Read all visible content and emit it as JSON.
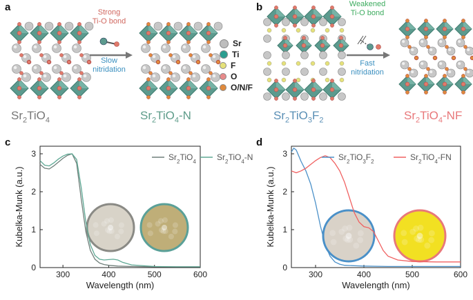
{
  "panels": {
    "a": "a",
    "b": "b",
    "c": "c",
    "d": "d"
  },
  "structures": {
    "a_left": {
      "base": "Sr",
      "s1": "2",
      "mid": "TiO",
      "s2": "4",
      "suffix": "",
      "color": "#777777"
    },
    "a_right": {
      "base": "Sr",
      "s1": "2",
      "mid": "TiO",
      "s2": "4",
      "suffix": "-N",
      "color": "#5e9c8a"
    },
    "b_left": {
      "base": "Sr",
      "s1": "2",
      "mid": "TiO",
      "s2": "3",
      "mid2": "F",
      "s3": "2",
      "color": "#5a8fb5"
    },
    "b_right": {
      "base": "Sr",
      "s1": "2",
      "mid": "TiO",
      "s2": "4",
      "suffix": "-NF",
      "color": "#e8787a"
    }
  },
  "arrows": {
    "a_top": "Strong\nTi-O bond",
    "a_bottom": "Slow\nnitridation",
    "b_top": "Weakened\nTi-O bond",
    "b_bottom": "Fast\nnitridation",
    "a_top_color": "#d0675f",
    "a_bottom_color": "#3a8fbf",
    "b_top_color": "#3cab5e",
    "b_bottom_color": "#3a8fbf"
  },
  "atom_legend": [
    {
      "label": "Sr",
      "color": "#bdbdbd"
    },
    {
      "label": "Ti",
      "color": "#2a9d8f"
    },
    {
      "label": "F",
      "color": "#e6e27a"
    },
    {
      "label": "O",
      "color": "#e88a8a"
    },
    {
      "label": "O/N/F",
      "color": "#e08a3c"
    }
  ],
  "chart_data": [
    {
      "type": "line",
      "panel": "c",
      "xlabel": "Wavelength (nm)",
      "ylabel": "Kubelka-Munk (a.u.)",
      "xlim": [
        250,
        600
      ],
      "ylim": [
        0,
        3.2
      ],
      "xticks": [
        "300",
        "400",
        "500",
        "600"
      ],
      "yticks": [
        "0",
        "1",
        "2",
        "3"
      ],
      "series": [
        {
          "name": "Sr2TiO4",
          "color": "#6f7f7a",
          "x": [
            250,
            260,
            270,
            280,
            290,
            300,
            310,
            320,
            330,
            340,
            350,
            360,
            370,
            380,
            390,
            400,
            420,
            450,
            500,
            550,
            600
          ],
          "y": [
            2.72,
            2.62,
            2.6,
            2.68,
            2.78,
            2.88,
            2.96,
            3.0,
            2.75,
            1.8,
            0.95,
            0.45,
            0.22,
            0.12,
            0.08,
            0.06,
            0.04,
            0.03,
            0.02,
            0.02,
            0.02
          ]
        },
        {
          "name": "Sr2TiO4-N",
          "color": "#5ea894",
          "x": [
            250,
            260,
            270,
            280,
            290,
            300,
            310,
            320,
            330,
            340,
            350,
            360,
            370,
            380,
            390,
            400,
            410,
            420,
            430,
            450,
            500,
            550,
            600
          ],
          "y": [
            2.82,
            2.7,
            2.68,
            2.76,
            2.86,
            2.94,
            2.99,
            3.0,
            2.85,
            2.1,
            1.2,
            0.6,
            0.32,
            0.22,
            0.2,
            0.21,
            0.22,
            0.2,
            0.14,
            0.07,
            0.03,
            0.02,
            0.02
          ]
        }
      ],
      "legend": [
        {
          "base": "Sr",
          "s1": "2",
          "mid": "TiO",
          "s2": "4",
          "suffix": ""
        },
        {
          "base": "Sr",
          "s1": "2",
          "mid": "TiO",
          "s2": "4",
          "suffix": "-N"
        }
      ],
      "insets": [
        {
          "fill": "#d8d3c8",
          "ring": "#8a8a85"
        },
        {
          "fill": "#bfae78",
          "ring": "#5aa098"
        }
      ]
    },
    {
      "type": "line",
      "panel": "d",
      "xlabel": "Wavelength (nm)",
      "ylabel": "Kubelka-Munk (a.u.)",
      "xlim": [
        250,
        600
      ],
      "ylim": [
        0,
        3.2
      ],
      "xticks": [
        "300",
        "400",
        "500",
        "600"
      ],
      "yticks": [
        "0",
        "1",
        "2",
        "3"
      ],
      "series": [
        {
          "name": "Sr2TiO3F2",
          "color": "#4a90c8",
          "x": [
            250,
            255,
            260,
            265,
            270,
            280,
            290,
            300,
            310,
            320,
            330,
            340,
            350,
            360,
            380,
            400,
            450,
            500,
            550,
            600
          ],
          "y": [
            3.05,
            3.15,
            3.1,
            2.95,
            2.8,
            2.55,
            2.2,
            1.7,
            1.1,
            0.6,
            0.3,
            0.15,
            0.09,
            0.06,
            0.05,
            0.04,
            0.03,
            0.03,
            0.03,
            0.03
          ]
        },
        {
          "name": "Sr2TiO4-FN",
          "color": "#f06060",
          "x": [
            250,
            260,
            270,
            280,
            290,
            300,
            310,
            320,
            330,
            340,
            350,
            360,
            370,
            380,
            390,
            400,
            410,
            420,
            430,
            440,
            450,
            470,
            500,
            550,
            600
          ],
          "y": [
            2.55,
            2.5,
            2.55,
            2.62,
            2.72,
            2.82,
            2.9,
            2.95,
            2.9,
            2.75,
            2.55,
            2.25,
            1.85,
            1.45,
            1.2,
            1.08,
            1.05,
            0.95,
            0.7,
            0.45,
            0.3,
            0.2,
            0.16,
            0.15,
            0.15
          ]
        }
      ],
      "legend": [
        {
          "base": "Sr",
          "s1": "2",
          "mid": "TiO",
          "s2": "3",
          "mid2": "F",
          "s3": "2",
          "suffix": ""
        },
        {
          "base": "Sr",
          "s1": "2",
          "mid": "TiO",
          "s2": "4",
          "suffix": "-FN"
        }
      ],
      "insets": [
        {
          "fill": "#d9d2c8",
          "ring": "#4a90c8"
        },
        {
          "fill": "#f2e022",
          "ring": "#e8787a"
        }
      ]
    }
  ]
}
